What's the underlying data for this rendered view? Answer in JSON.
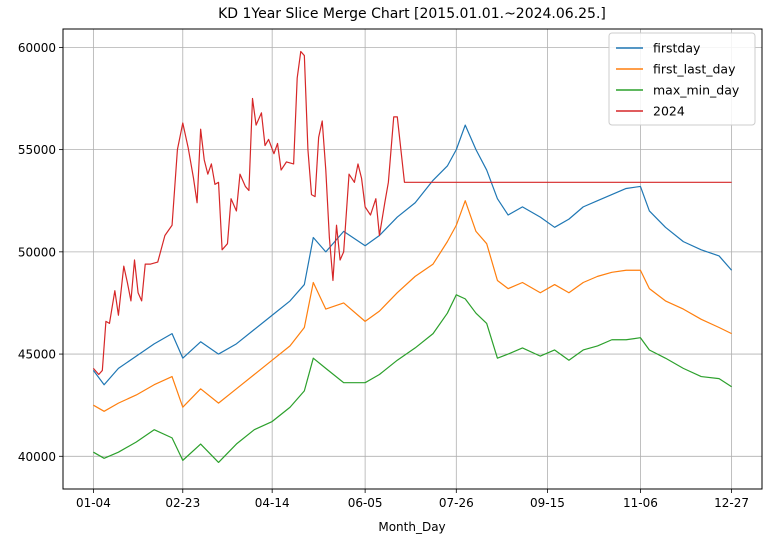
{
  "chart_data": {
    "type": "line",
    "title": "KD 1Year Slice Merge Chart [2015.01.01.~2024.06.25.]",
    "xlabel": "Month_Day",
    "ylabel": "",
    "x_ticks": [
      "01-04",
      "02-23",
      "04-14",
      "06-05",
      "07-26",
      "09-15",
      "11-06",
      "12-27"
    ],
    "x_tick_positions": [
      0,
      50,
      100,
      152,
      203,
      254,
      306,
      357
    ],
    "x_range": [
      -17,
      374
    ],
    "ylim": [
      38400,
      60900
    ],
    "y_ticks": [
      40000,
      45000,
      50000,
      55000,
      60000
    ],
    "grid": true,
    "legend_position": "top-right",
    "series": [
      {
        "name": "firstday",
        "color": "#1f77b4",
        "points": [
          [
            0,
            44200
          ],
          [
            6,
            43500
          ],
          [
            14,
            44300
          ],
          [
            24,
            44900
          ],
          [
            34,
            45500
          ],
          [
            44,
            46000
          ],
          [
            50,
            44800
          ],
          [
            60,
            45600
          ],
          [
            70,
            45000
          ],
          [
            80,
            45500
          ],
          [
            90,
            46200
          ],
          [
            100,
            46900
          ],
          [
            110,
            47600
          ],
          [
            118,
            48400
          ],
          [
            123,
            50700
          ],
          [
            130,
            50000
          ],
          [
            140,
            51000
          ],
          [
            152,
            50300
          ],
          [
            160,
            50800
          ],
          [
            170,
            51700
          ],
          [
            180,
            52400
          ],
          [
            190,
            53500
          ],
          [
            198,
            54200
          ],
          [
            203,
            55000
          ],
          [
            208,
            56200
          ],
          [
            214,
            55000
          ],
          [
            220,
            54000
          ],
          [
            226,
            52600
          ],
          [
            232,
            51800
          ],
          [
            240,
            52200
          ],
          [
            250,
            51700
          ],
          [
            258,
            51200
          ],
          [
            266,
            51600
          ],
          [
            274,
            52200
          ],
          [
            282,
            52500
          ],
          [
            290,
            52800
          ],
          [
            298,
            53100
          ],
          [
            306,
            53200
          ],
          [
            311,
            52000
          ],
          [
            320,
            51200
          ],
          [
            330,
            50500
          ],
          [
            340,
            50100
          ],
          [
            350,
            49800
          ],
          [
            357,
            49100
          ]
        ]
      },
      {
        "name": "first_last_day",
        "color": "#ff7f0e",
        "points": [
          [
            0,
            42500
          ],
          [
            6,
            42200
          ],
          [
            14,
            42600
          ],
          [
            24,
            43000
          ],
          [
            34,
            43500
          ],
          [
            44,
            43900
          ],
          [
            50,
            42400
          ],
          [
            60,
            43300
          ],
          [
            70,
            42600
          ],
          [
            80,
            43300
          ],
          [
            90,
            44000
          ],
          [
            100,
            44700
          ],
          [
            110,
            45400
          ],
          [
            118,
            46300
          ],
          [
            123,
            48500
          ],
          [
            130,
            47200
          ],
          [
            140,
            47500
          ],
          [
            152,
            46600
          ],
          [
            160,
            47100
          ],
          [
            170,
            48000
          ],
          [
            180,
            48800
          ],
          [
            190,
            49400
          ],
          [
            198,
            50500
          ],
          [
            203,
            51300
          ],
          [
            208,
            52500
          ],
          [
            214,
            51000
          ],
          [
            220,
            50400
          ],
          [
            226,
            48600
          ],
          [
            232,
            48200
          ],
          [
            240,
            48500
          ],
          [
            250,
            48000
          ],
          [
            258,
            48400
          ],
          [
            266,
            48000
          ],
          [
            274,
            48500
          ],
          [
            282,
            48800
          ],
          [
            290,
            49000
          ],
          [
            298,
            49100
          ],
          [
            306,
            49100
          ],
          [
            311,
            48200
          ],
          [
            320,
            47600
          ],
          [
            330,
            47200
          ],
          [
            340,
            46700
          ],
          [
            350,
            46300
          ],
          [
            357,
            46000
          ]
        ]
      },
      {
        "name": "max_min_day",
        "color": "#2ca02c",
        "points": [
          [
            0,
            40200
          ],
          [
            6,
            39900
          ],
          [
            14,
            40200
          ],
          [
            24,
            40700
          ],
          [
            34,
            41300
          ],
          [
            44,
            40900
          ],
          [
            50,
            39800
          ],
          [
            60,
            40600
          ],
          [
            70,
            39700
          ],
          [
            80,
            40600
          ],
          [
            90,
            41300
          ],
          [
            100,
            41700
          ],
          [
            110,
            42400
          ],
          [
            118,
            43200
          ],
          [
            123,
            44800
          ],
          [
            130,
            44300
          ],
          [
            140,
            43600
          ],
          [
            152,
            43600
          ],
          [
            160,
            44000
          ],
          [
            170,
            44700
          ],
          [
            180,
            45300
          ],
          [
            190,
            46000
          ],
          [
            198,
            47000
          ],
          [
            203,
            47900
          ],
          [
            208,
            47700
          ],
          [
            214,
            47000
          ],
          [
            220,
            46500
          ],
          [
            226,
            44800
          ],
          [
            232,
            45000
          ],
          [
            240,
            45300
          ],
          [
            250,
            44900
          ],
          [
            258,
            45200
          ],
          [
            266,
            44700
          ],
          [
            274,
            45200
          ],
          [
            282,
            45400
          ],
          [
            290,
            45700
          ],
          [
            298,
            45700
          ],
          [
            306,
            45800
          ],
          [
            311,
            45200
          ],
          [
            320,
            44800
          ],
          [
            330,
            44300
          ],
          [
            340,
            43900
          ],
          [
            350,
            43800
          ],
          [
            357,
            43400
          ]
        ]
      },
      {
        "name": "2024",
        "color": "#d62728",
        "points": [
          [
            0,
            44300
          ],
          [
            3,
            44000
          ],
          [
            5,
            44200
          ],
          [
            7,
            46600
          ],
          [
            9,
            46500
          ],
          [
            12,
            48100
          ],
          [
            14,
            46900
          ],
          [
            17,
            49300
          ],
          [
            19,
            48500
          ],
          [
            21,
            47600
          ],
          [
            23,
            49600
          ],
          [
            25,
            48000
          ],
          [
            27,
            47600
          ],
          [
            29,
            49400
          ],
          [
            32,
            49400
          ],
          [
            36,
            49500
          ],
          [
            40,
            50800
          ],
          [
            44,
            51300
          ],
          [
            47,
            55000
          ],
          [
            50,
            56300
          ],
          [
            53,
            55100
          ],
          [
            56,
            53600
          ],
          [
            58,
            52400
          ],
          [
            60,
            56000
          ],
          [
            62,
            54500
          ],
          [
            64,
            53800
          ],
          [
            66,
            54300
          ],
          [
            68,
            53300
          ],
          [
            70,
            53400
          ],
          [
            72,
            50100
          ],
          [
            75,
            50400
          ],
          [
            77,
            52600
          ],
          [
            80,
            52000
          ],
          [
            82,
            53800
          ],
          [
            85,
            53200
          ],
          [
            87,
            53000
          ],
          [
            89,
            57500
          ],
          [
            91,
            56200
          ],
          [
            94,
            56800
          ],
          [
            96,
            55200
          ],
          [
            98,
            55500
          ],
          [
            101,
            54800
          ],
          [
            103,
            55300
          ],
          [
            105,
            54000
          ],
          [
            108,
            54400
          ],
          [
            112,
            54300
          ],
          [
            114,
            58500
          ],
          [
            116,
            59800
          ],
          [
            118,
            59600
          ],
          [
            120,
            55000
          ],
          [
            122,
            52800
          ],
          [
            124,
            52700
          ],
          [
            126,
            55600
          ],
          [
            128,
            56400
          ],
          [
            130,
            54000
          ],
          [
            132,
            50700
          ],
          [
            134,
            48600
          ],
          [
            136,
            51300
          ],
          [
            138,
            49600
          ],
          [
            140,
            50000
          ],
          [
            143,
            53800
          ],
          [
            146,
            53400
          ],
          [
            148,
            54300
          ],
          [
            150,
            53600
          ],
          [
            152,
            52200
          ],
          [
            155,
            51800
          ],
          [
            158,
            52600
          ],
          [
            160,
            50800
          ],
          [
            163,
            52400
          ],
          [
            165,
            53400
          ],
          [
            168,
            56600
          ],
          [
            170,
            56600
          ],
          [
            172,
            55000
          ],
          [
            174,
            53400
          ],
          [
            357,
            53400
          ]
        ]
      }
    ]
  }
}
